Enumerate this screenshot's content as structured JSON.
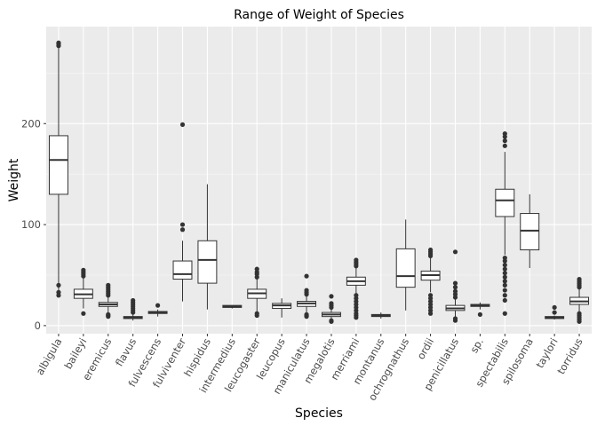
{
  "chart_data": {
    "type": "boxplot",
    "title": "Range of Weight of Species",
    "xlabel": "Species",
    "ylabel": "Weight",
    "ylim": [
      -8,
      296
    ],
    "yticks": [
      0,
      100,
      200
    ],
    "grid": true,
    "legend": "none",
    "colors": {
      "panel": "#ebebeb",
      "grid_major": "#ffffff",
      "box_fill": "#ffffff",
      "box_line": "#333333",
      "outlier": "#333333",
      "tick_text": "#4d4d4d"
    },
    "series": [
      {
        "category": "albigula",
        "whisker_low": 32,
        "q1": 130,
        "median": 164,
        "q3": 188,
        "whisker_high": 275,
        "outliers": [
          30,
          33,
          40,
          277,
          279,
          280
        ]
      },
      {
        "category": "baileyi",
        "whisker_low": 17,
        "q1": 27,
        "median": 31,
        "q3": 36,
        "whisker_high": 48,
        "outliers": [
          12,
          49,
          51,
          53,
          55
        ]
      },
      {
        "category": "eremicus",
        "whisker_low": 13,
        "q1": 19,
        "median": 21,
        "q3": 23,
        "whisker_high": 29,
        "outliers": [
          9,
          10,
          11,
          30,
          32,
          34,
          36,
          38,
          40
        ]
      },
      {
        "category": "flavus",
        "whisker_low": 5,
        "q1": 7,
        "median": 8,
        "q3": 9,
        "whisker_high": 12,
        "outliers": [
          13,
          15,
          17,
          19,
          21,
          23,
          25
        ]
      },
      {
        "category": "fulvescens",
        "whisker_low": 9,
        "q1": 12,
        "median": 13,
        "q3": 14,
        "whisker_high": 16,
        "outliers": [
          20
        ]
      },
      {
        "category": "fulviventer",
        "whisker_low": 24,
        "q1": 46,
        "median": 51,
        "q3": 64,
        "whisker_high": 84,
        "outliers": [
          95,
          100,
          199
        ]
      },
      {
        "category": "hispidus",
        "whisker_low": 16,
        "q1": 42,
        "median": 65,
        "q3": 84,
        "whisker_high": 140,
        "outliers": []
      },
      {
        "category": "intermedius",
        "whisker_low": 17,
        "q1": 18,
        "median": 19,
        "q3": 20,
        "whisker_high": 20,
        "outliers": []
      },
      {
        "category": "leucogaster",
        "whisker_low": 14,
        "q1": 27,
        "median": 32,
        "q3": 36,
        "whisker_high": 47,
        "outliers": [
          10,
          12,
          48,
          51,
          53,
          56
        ]
      },
      {
        "category": "leucopus",
        "whisker_low": 8,
        "q1": 17,
        "median": 20,
        "q3": 22,
        "whisker_high": 27,
        "outliers": []
      },
      {
        "category": "maniculatus",
        "whisker_low": 13,
        "q1": 19,
        "median": 22,
        "q3": 24,
        "whisker_high": 30,
        "outliers": [
          9,
          10,
          11,
          31,
          33,
          35,
          49
        ]
      },
      {
        "category": "megalotis",
        "whisker_low": 7,
        "q1": 9,
        "median": 11,
        "q3": 13,
        "whisker_high": 17,
        "outliers": [
          4,
          5,
          18,
          20,
          22,
          29
        ]
      },
      {
        "category": "merriami",
        "whisker_low": 31,
        "q1": 40,
        "median": 44,
        "q3": 48,
        "whisker_high": 58,
        "outliers": [
          8,
          10,
          12,
          15,
          18,
          21,
          24,
          27,
          30,
          59,
          61,
          63,
          65
        ]
      },
      {
        "category": "montanus",
        "whisker_low": 7,
        "q1": 9,
        "median": 10,
        "q3": 11,
        "whisker_high": 13,
        "outliers": []
      },
      {
        "category": "ochrognathus",
        "whisker_low": 15,
        "q1": 38,
        "median": 49,
        "q3": 76,
        "whisker_high": 105,
        "outliers": []
      },
      {
        "category": "ordii",
        "whisker_low": 33,
        "q1": 45,
        "median": 50,
        "q3": 54,
        "whisker_high": 67,
        "outliers": [
          12,
          15,
          18,
          21,
          24,
          27,
          30,
          69,
          71,
          73,
          75
        ]
      },
      {
        "category": "penicillatus",
        "whisker_low": 9,
        "q1": 15,
        "median": 17,
        "q3": 20,
        "whisker_high": 27,
        "outliers": [
          5,
          7,
          28,
          31,
          34,
          38,
          42,
          73
        ]
      },
      {
        "category": "sp.",
        "whisker_low": 16,
        "q1": 19,
        "median": 20,
        "q3": 21,
        "whisker_high": 23,
        "outliers": [
          11
        ]
      },
      {
        "category": "spectabilis",
        "whisker_low": 70,
        "q1": 108,
        "median": 124,
        "q3": 135,
        "whisker_high": 172,
        "outliers": [
          12,
          25,
          30,
          35,
          40,
          44,
          48,
          52,
          56,
          60,
          64,
          67,
          178,
          183,
          187,
          190
        ]
      },
      {
        "category": "spilosoma",
        "whisker_low": 57,
        "q1": 75,
        "median": 94,
        "q3": 111,
        "whisker_high": 130,
        "outliers": []
      },
      {
        "category": "taylori",
        "whisker_low": 6,
        "q1": 7,
        "median": 8,
        "q3": 9,
        "whisker_high": 10,
        "outliers": [
          13,
          18
        ]
      },
      {
        "category": "torridus",
        "whisker_low": 14,
        "q1": 21,
        "median": 24,
        "q3": 28,
        "whisker_high": 37,
        "outliers": [
          4,
          6,
          8,
          10,
          12,
          38,
          40,
          42,
          44,
          46
        ]
      }
    ]
  }
}
